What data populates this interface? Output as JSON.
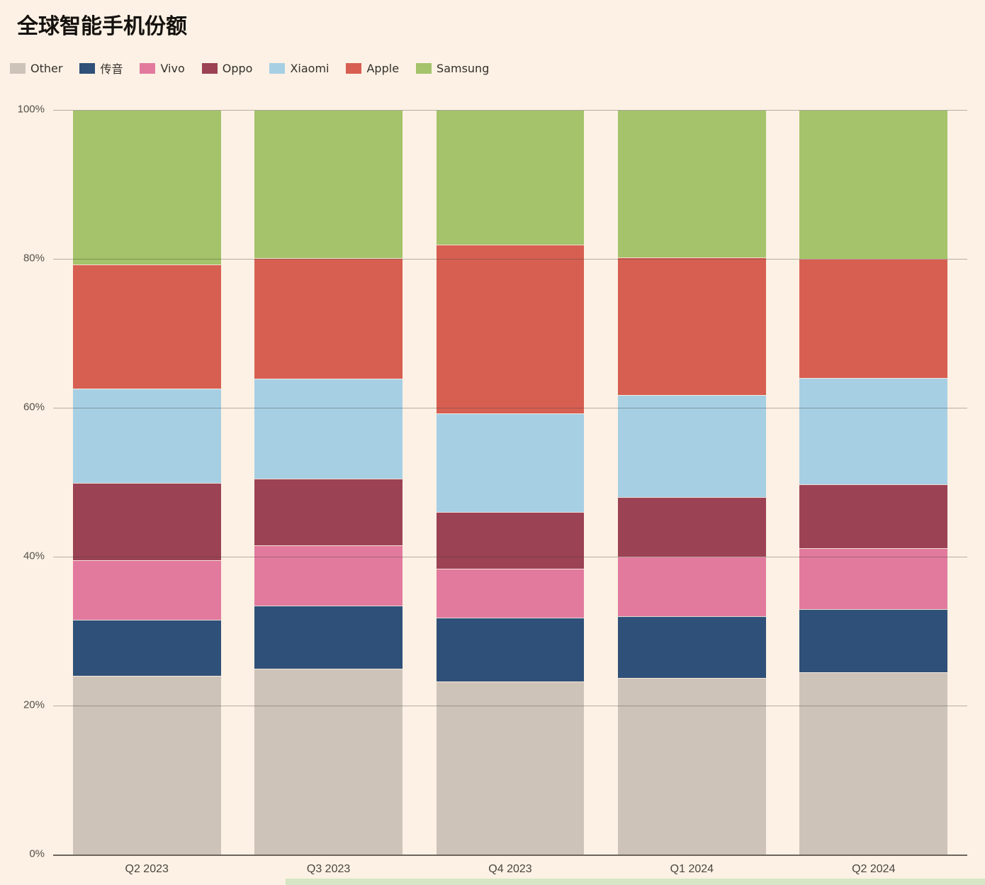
{
  "page": {
    "background": "#fcf1e4"
  },
  "chart_data": {
    "type": "bar",
    "stacked": true,
    "title": "全球智能手机份额",
    "categories": [
      "Q2 2023",
      "Q3 2023",
      "Q4 2023",
      "Q1 2024",
      "Q2 2024"
    ],
    "series": [
      {
        "name": "Other",
        "color": "#cdc3b9",
        "values": [
          24.0,
          25.0,
          23.2,
          23.7,
          24.5
        ]
      },
      {
        "name": "传音",
        "color": "#2f5078",
        "values": [
          7.5,
          8.4,
          8.6,
          8.3,
          8.5
        ]
      },
      {
        "name": "Vivo",
        "color": "#e27a9e",
        "values": [
          8.0,
          8.1,
          6.6,
          8.0,
          8.1
        ]
      },
      {
        "name": "Oppo",
        "color": "#9c4255",
        "values": [
          10.4,
          9.0,
          7.6,
          8.0,
          8.6
        ]
      },
      {
        "name": "Xiaomi",
        "color": "#a6cfe4",
        "values": [
          12.7,
          13.4,
          13.2,
          13.7,
          14.3
        ]
      },
      {
        "name": "Apple",
        "color": "#d75f52",
        "values": [
          16.6,
          16.2,
          22.7,
          18.5,
          16.0
        ]
      },
      {
        "name": "Samsung",
        "color": "#a4c36a",
        "values": [
          20.8,
          19.9,
          18.1,
          19.8,
          20.0
        ]
      }
    ],
    "xlabel": "",
    "ylabel": "",
    "ylim": [
      0,
      100
    ],
    "yticks": [
      0,
      20,
      40,
      60,
      80,
      100
    ],
    "ytick_suffix": "%",
    "grid": true,
    "legend_position": "top-left",
    "gridline_color": "rgba(72,63,55,0.38)",
    "baseline_color": "#6e665d",
    "background_color": "#fcf1e4"
  }
}
